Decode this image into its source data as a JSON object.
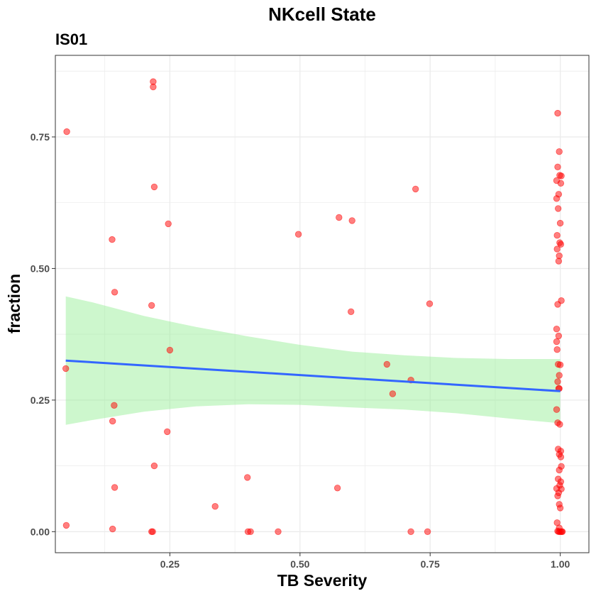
{
  "chart_data": {
    "type": "scatter",
    "title": "NKcell State",
    "subtitle": "IS01",
    "xlabel": "TB Severity",
    "ylabel": "fraction",
    "xlim": [
      0.03,
      1.055
    ],
    "ylim": [
      -0.04,
      0.905
    ],
    "xticks": [
      0.25,
      0.5,
      0.75,
      1.0
    ],
    "xtick_labels": [
      "0.25",
      "0.50",
      "0.75",
      "1.00"
    ],
    "yticks": [
      0.0,
      0.25,
      0.5,
      0.75
    ],
    "ytick_labels": [
      "0.00",
      "0.25",
      "0.50",
      "0.75"
    ],
    "grid": true,
    "point_color": "#ff0000",
    "line_color": "#3366ff",
    "band_color": "#90ee90",
    "points": [
      {
        "x": 0.05,
        "y": 0.31
      },
      {
        "x": 0.051,
        "y": 0.012
      },
      {
        "x": 0.052,
        "y": 0.76
      },
      {
        "x": 0.139,
        "y": 0.555
      },
      {
        "x": 0.14,
        "y": 0.21
      },
      {
        "x": 0.14,
        "y": 0.005
      },
      {
        "x": 0.143,
        "y": 0.24
      },
      {
        "x": 0.144,
        "y": 0.455
      },
      {
        "x": 0.144,
        "y": 0.084
      },
      {
        "x": 0.215,
        "y": 0.43
      },
      {
        "x": 0.215,
        "y": 0.0
      },
      {
        "x": 0.217,
        "y": 0.0
      },
      {
        "x": 0.218,
        "y": 0.855
      },
      {
        "x": 0.218,
        "y": 0.845
      },
      {
        "x": 0.22,
        "y": 0.655
      },
      {
        "x": 0.22,
        "y": 0.125
      },
      {
        "x": 0.245,
        "y": 0.19
      },
      {
        "x": 0.247,
        "y": 0.585
      },
      {
        "x": 0.25,
        "y": 0.345
      },
      {
        "x": 0.337,
        "y": 0.048
      },
      {
        "x": 0.399,
        "y": 0.103
      },
      {
        "x": 0.4,
        "y": 0.0
      },
      {
        "x": 0.405,
        "y": 0.0
      },
      {
        "x": 0.458,
        "y": 0.0
      },
      {
        "x": 0.497,
        "y": 0.565
      },
      {
        "x": 0.572,
        "y": 0.083
      },
      {
        "x": 0.575,
        "y": 0.597
      },
      {
        "x": 0.598,
        "y": 0.418
      },
      {
        "x": 0.6,
        "y": 0.591
      },
      {
        "x": 0.667,
        "y": 0.318
      },
      {
        "x": 0.678,
        "y": 0.262
      },
      {
        "x": 0.713,
        "y": 0.288
      },
      {
        "x": 0.713,
        "y": 0.0
      },
      {
        "x": 0.722,
        "y": 0.651
      },
      {
        "x": 0.745,
        "y": 0.0
      },
      {
        "x": 0.749,
        "y": 0.433
      },
      {
        "x": 0.995,
        "y": 0.795
      },
      {
        "x": 0.998,
        "y": 0.722
      },
      {
        "x": 0.995,
        "y": 0.693
      },
      {
        "x": 1.002,
        "y": 0.676
      },
      {
        "x": 0.999,
        "y": 0.677
      },
      {
        "x": 0.993,
        "y": 0.667
      },
      {
        "x": 1.001,
        "y": 0.662
      },
      {
        "x": 0.997,
        "y": 0.641
      },
      {
        "x": 0.993,
        "y": 0.633
      },
      {
        "x": 0.996,
        "y": 0.614
      },
      {
        "x": 1.0,
        "y": 0.586
      },
      {
        "x": 0.994,
        "y": 0.563
      },
      {
        "x": 0.999,
        "y": 0.549
      },
      {
        "x": 1.001,
        "y": 0.546
      },
      {
        "x": 0.994,
        "y": 0.537
      },
      {
        "x": 0.998,
        "y": 0.524
      },
      {
        "x": 0.997,
        "y": 0.514
      },
      {
        "x": 1.002,
        "y": 0.439
      },
      {
        "x": 0.995,
        "y": 0.432
      },
      {
        "x": 0.993,
        "y": 0.385
      },
      {
        "x": 0.997,
        "y": 0.372
      },
      {
        "x": 0.993,
        "y": 0.361
      },
      {
        "x": 0.994,
        "y": 0.346
      },
      {
        "x": 0.996,
        "y": 0.318
      },
      {
        "x": 1.0,
        "y": 0.317
      },
      {
        "x": 0.998,
        "y": 0.297
      },
      {
        "x": 0.995,
        "y": 0.285
      },
      {
        "x": 0.998,
        "y": 0.272
      },
      {
        "x": 0.997,
        "y": 0.272
      },
      {
        "x": 0.993,
        "y": 0.232
      },
      {
        "x": 0.995,
        "y": 0.207
      },
      {
        "x": 0.999,
        "y": 0.204
      },
      {
        "x": 0.996,
        "y": 0.157
      },
      {
        "x": 1.001,
        "y": 0.153
      },
      {
        "x": 0.998,
        "y": 0.147
      },
      {
        "x": 1.001,
        "y": 0.142
      },
      {
        "x": 1.002,
        "y": 0.124
      },
      {
        "x": 0.998,
        "y": 0.117
      },
      {
        "x": 0.996,
        "y": 0.1
      },
      {
        "x": 1.001,
        "y": 0.095
      },
      {
        "x": 0.999,
        "y": 0.088
      },
      {
        "x": 0.993,
        "y": 0.082
      },
      {
        "x": 1.002,
        "y": 0.081
      },
      {
        "x": 0.997,
        "y": 0.074
      },
      {
        "x": 0.995,
        "y": 0.068
      },
      {
        "x": 0.998,
        "y": 0.052
      },
      {
        "x": 1.0,
        "y": 0.045
      },
      {
        "x": 0.994,
        "y": 0.017
      },
      {
        "x": 0.998,
        "y": 0.007
      },
      {
        "x": 0.995,
        "y": 0.001
      },
      {
        "x": 0.997,
        "y": 0.0
      },
      {
        "x": 0.999,
        "y": 0.0
      },
      {
        "x": 1.001,
        "y": 0.0
      },
      {
        "x": 1.003,
        "y": 0.0
      },
      {
        "x": 1.004,
        "y": 0.0
      }
    ],
    "trend_line": {
      "x": [
        0.05,
        1.0
      ],
      "y": [
        0.325,
        0.267
      ]
    },
    "confidence_band": {
      "x": [
        0.05,
        0.1,
        0.2,
        0.3,
        0.4,
        0.5,
        0.6,
        0.7,
        0.8,
        0.9,
        1.0
      ],
      "lower": [
        0.203,
        0.212,
        0.228,
        0.238,
        0.242,
        0.241,
        0.236,
        0.232,
        0.225,
        0.215,
        0.206
      ],
      "upper": [
        0.447,
        0.436,
        0.41,
        0.389,
        0.371,
        0.355,
        0.342,
        0.335,
        0.33,
        0.328,
        0.328
      ]
    }
  }
}
